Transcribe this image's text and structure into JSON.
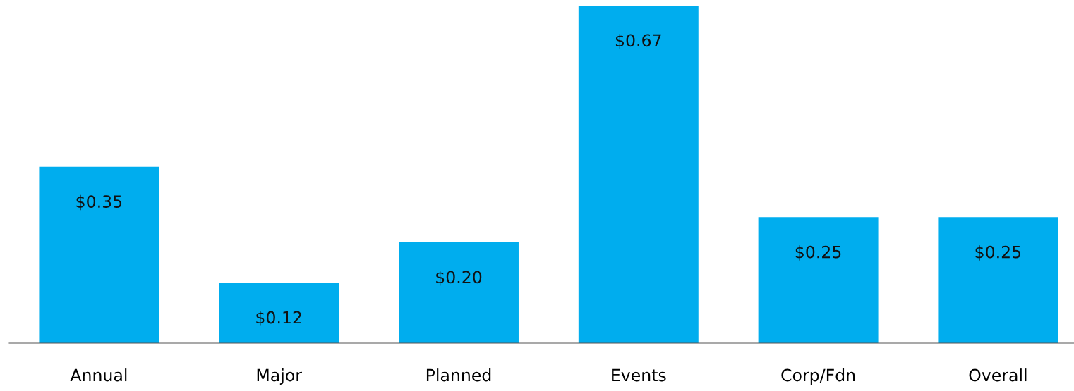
{
  "chart_data": {
    "type": "bar",
    "categories": [
      "Annual",
      "Major",
      "Planned",
      "Events",
      "Corp/Fdn",
      "Overall"
    ],
    "values": [
      0.35,
      0.12,
      0.2,
      0.67,
      0.25,
      0.25
    ],
    "value_labels": [
      "$0.35",
      "$0.12",
      "$0.20",
      "$0.67",
      "$0.25",
      "$0.25"
    ],
    "color": "#00adee",
    "ylim": [
      0,
      0.67
    ],
    "tick_labels": "x",
    "grid": false,
    "legend": false
  }
}
